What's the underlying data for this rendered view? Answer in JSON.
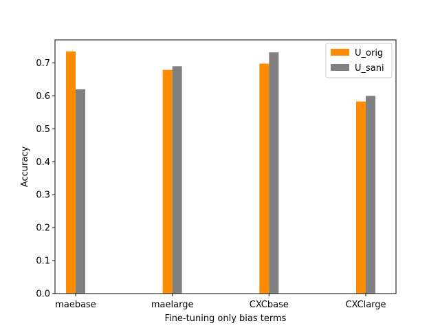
{
  "chart_data": {
    "type": "bar",
    "xlabel": "Fine-tuning only bias terms",
    "ylabel": "Accuracy",
    "categories": [
      "maebase",
      "maelarge",
      "CXCbase",
      "CXClarge"
    ],
    "series": [
      {
        "name": "U_orig",
        "color": "#ff8c00",
        "values": [
          0.735,
          0.679,
          0.698,
          0.583
        ]
      },
      {
        "name": "U_sani",
        "color": "#808080",
        "values": [
          0.62,
          0.69,
          0.732,
          0.6
        ]
      }
    ],
    "ylim": [
      0,
      0.77
    ],
    "yticks": [
      0.0,
      0.1,
      0.2,
      0.3,
      0.4,
      0.5,
      0.6,
      0.7
    ],
    "ytick_labels": [
      "0.0",
      "0.1",
      "0.2",
      "0.3",
      "0.4",
      "0.5",
      "0.6",
      "0.7"
    ],
    "grid": false,
    "legend_position": "top-right"
  }
}
